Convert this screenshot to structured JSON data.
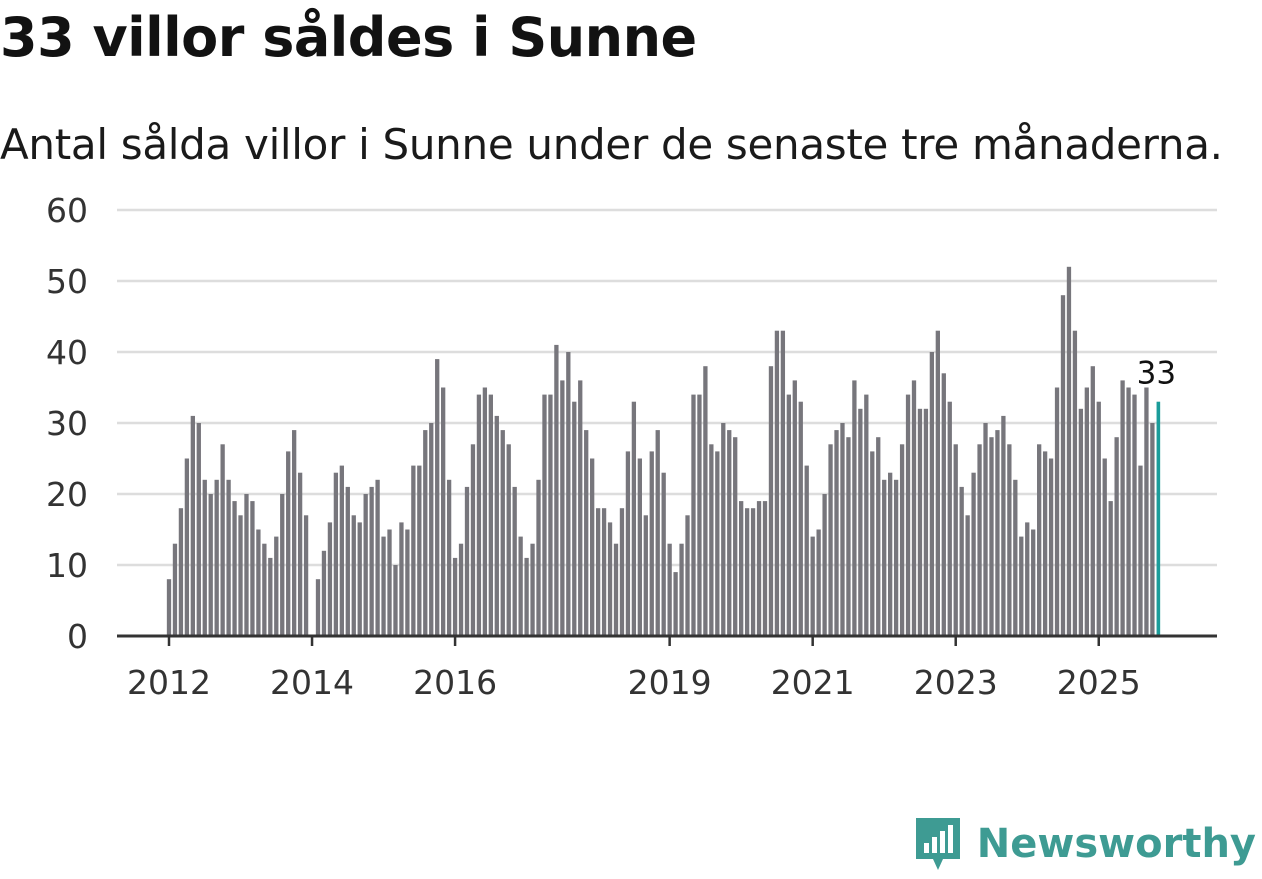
{
  "title": "33 villor såldes i Sunne",
  "subtitle": "Antal sålda villor i Sunne under de senaste tre månaderna.",
  "brand": {
    "name": "Newsworthy",
    "color": "#3e9b93"
  },
  "colors": {
    "bar": "#77767c",
    "highlight": "#1b9c9a",
    "grid": "#dddddd",
    "axis": "#333333"
  },
  "chart_data": {
    "type": "bar",
    "title": "33 villor såldes i Sunne",
    "xlabel": "",
    "ylabel": "",
    "ylim": [
      0,
      60
    ],
    "yticks": [
      0,
      10,
      20,
      30,
      40,
      50,
      60
    ],
    "start": "2012-01",
    "xtick_labels": [
      {
        "label": "2012",
        "index": 0
      },
      {
        "label": "2014",
        "index": 24
      },
      {
        "label": "2016",
        "index": 48
      },
      {
        "label": "2019",
        "index": 84
      },
      {
        "label": "2021",
        "index": 108
      },
      {
        "label": "2023",
        "index": 132
      },
      {
        "label": "2025",
        "index": 156
      }
    ],
    "values": [
      8,
      13,
      18,
      25,
      31,
      30,
      22,
      20,
      22,
      27,
      22,
      19,
      17,
      20,
      19,
      15,
      13,
      11,
      14,
      20,
      26,
      29,
      23,
      17,
      0,
      8,
      12,
      16,
      23,
      24,
      21,
      17,
      16,
      20,
      21,
      22,
      14,
      15,
      10,
      16,
      15,
      24,
      24,
      29,
      30,
      39,
      35,
      22,
      11,
      13,
      21,
      27,
      34,
      35,
      34,
      31,
      29,
      27,
      21,
      14,
      11,
      13,
      22,
      34,
      34,
      41,
      36,
      40,
      33,
      36,
      29,
      25,
      18,
      18,
      16,
      13,
      18,
      26,
      33,
      25,
      17,
      26,
      29,
      23,
      13,
      9,
      13,
      17,
      34,
      34,
      38,
      27,
      26,
      30,
      29,
      28,
      19,
      18,
      18,
      19,
      19,
      38,
      43,
      43,
      34,
      36,
      33,
      24,
      14,
      15,
      20,
      27,
      29,
      30,
      28,
      36,
      32,
      34,
      26,
      28,
      22,
      23,
      22,
      27,
      34,
      36,
      32,
      32,
      40,
      43,
      37,
      33,
      27,
      21,
      17,
      23,
      27,
      30,
      28,
      29,
      31,
      27,
      22,
      14,
      16,
      15,
      27,
      26,
      25,
      35,
      48,
      52,
      43,
      32,
      35,
      38,
      33,
      25,
      19,
      28,
      36,
      35,
      34,
      24,
      35,
      30,
      33
    ],
    "highlight_label": "33"
  }
}
